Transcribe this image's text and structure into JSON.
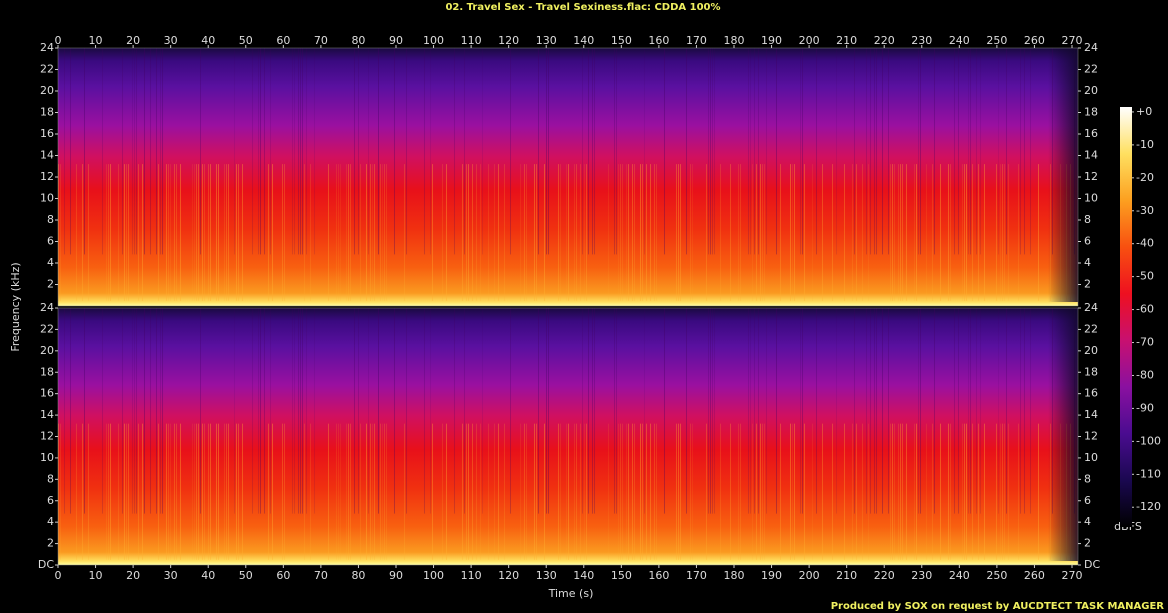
{
  "chart_data": [
    {
      "type": "spectrogram",
      "title": "02. Travel Sex - Travel Sexiness.flac: CDDA 100%",
      "y_label": "Frequency (kHz)",
      "xlim": [
        0,
        271.6
      ],
      "xticks": [
        0,
        10,
        20,
        30,
        40,
        50,
        60,
        70,
        80,
        90,
        100,
        110,
        120,
        130,
        140,
        150,
        160,
        170,
        180,
        190,
        200,
        210,
        220,
        230,
        240,
        250,
        260,
        270
      ],
      "ylim": [
        0,
        24
      ],
      "yticks": [
        2,
        4,
        6,
        8,
        10,
        12,
        14,
        16,
        18,
        20,
        22,
        24
      ]
    },
    {
      "type": "spectrogram",
      "x_label": "Time (s)",
      "xlim": [
        0,
        271.6
      ],
      "xticks": [
        0,
        10,
        20,
        30,
        40,
        50,
        60,
        70,
        80,
        90,
        100,
        110,
        120,
        130,
        140,
        150,
        160,
        170,
        180,
        190,
        200,
        210,
        220,
        230,
        240,
        250,
        260,
        270
      ],
      "ylim": [
        0,
        24
      ],
      "yticks": [
        {
          "value": 0,
          "label": "DC"
        },
        2,
        4,
        6,
        8,
        10,
        12,
        14,
        16,
        18,
        20,
        22,
        24
      ]
    }
  ],
  "colorbar": {
    "label": "dBFS",
    "zlim": [
      -126,
      1.5
    ],
    "ticks": [
      {
        "value": 0,
        "label": "+0"
      },
      -10,
      -20,
      -30,
      -40,
      -50,
      -60,
      -70,
      -80,
      -90,
      -100,
      -110,
      -120
    ],
    "colors": [
      "#000000",
      "#1a0850",
      "#4a0c90",
      "#8a10a0",
      "#c81070",
      "#ee1020",
      "#f85010",
      "#fca020",
      "#ffe060",
      "#ffffff"
    ]
  },
  "footer": "Produced by SOX on request by AUCDTECT TASK MANAGER"
}
